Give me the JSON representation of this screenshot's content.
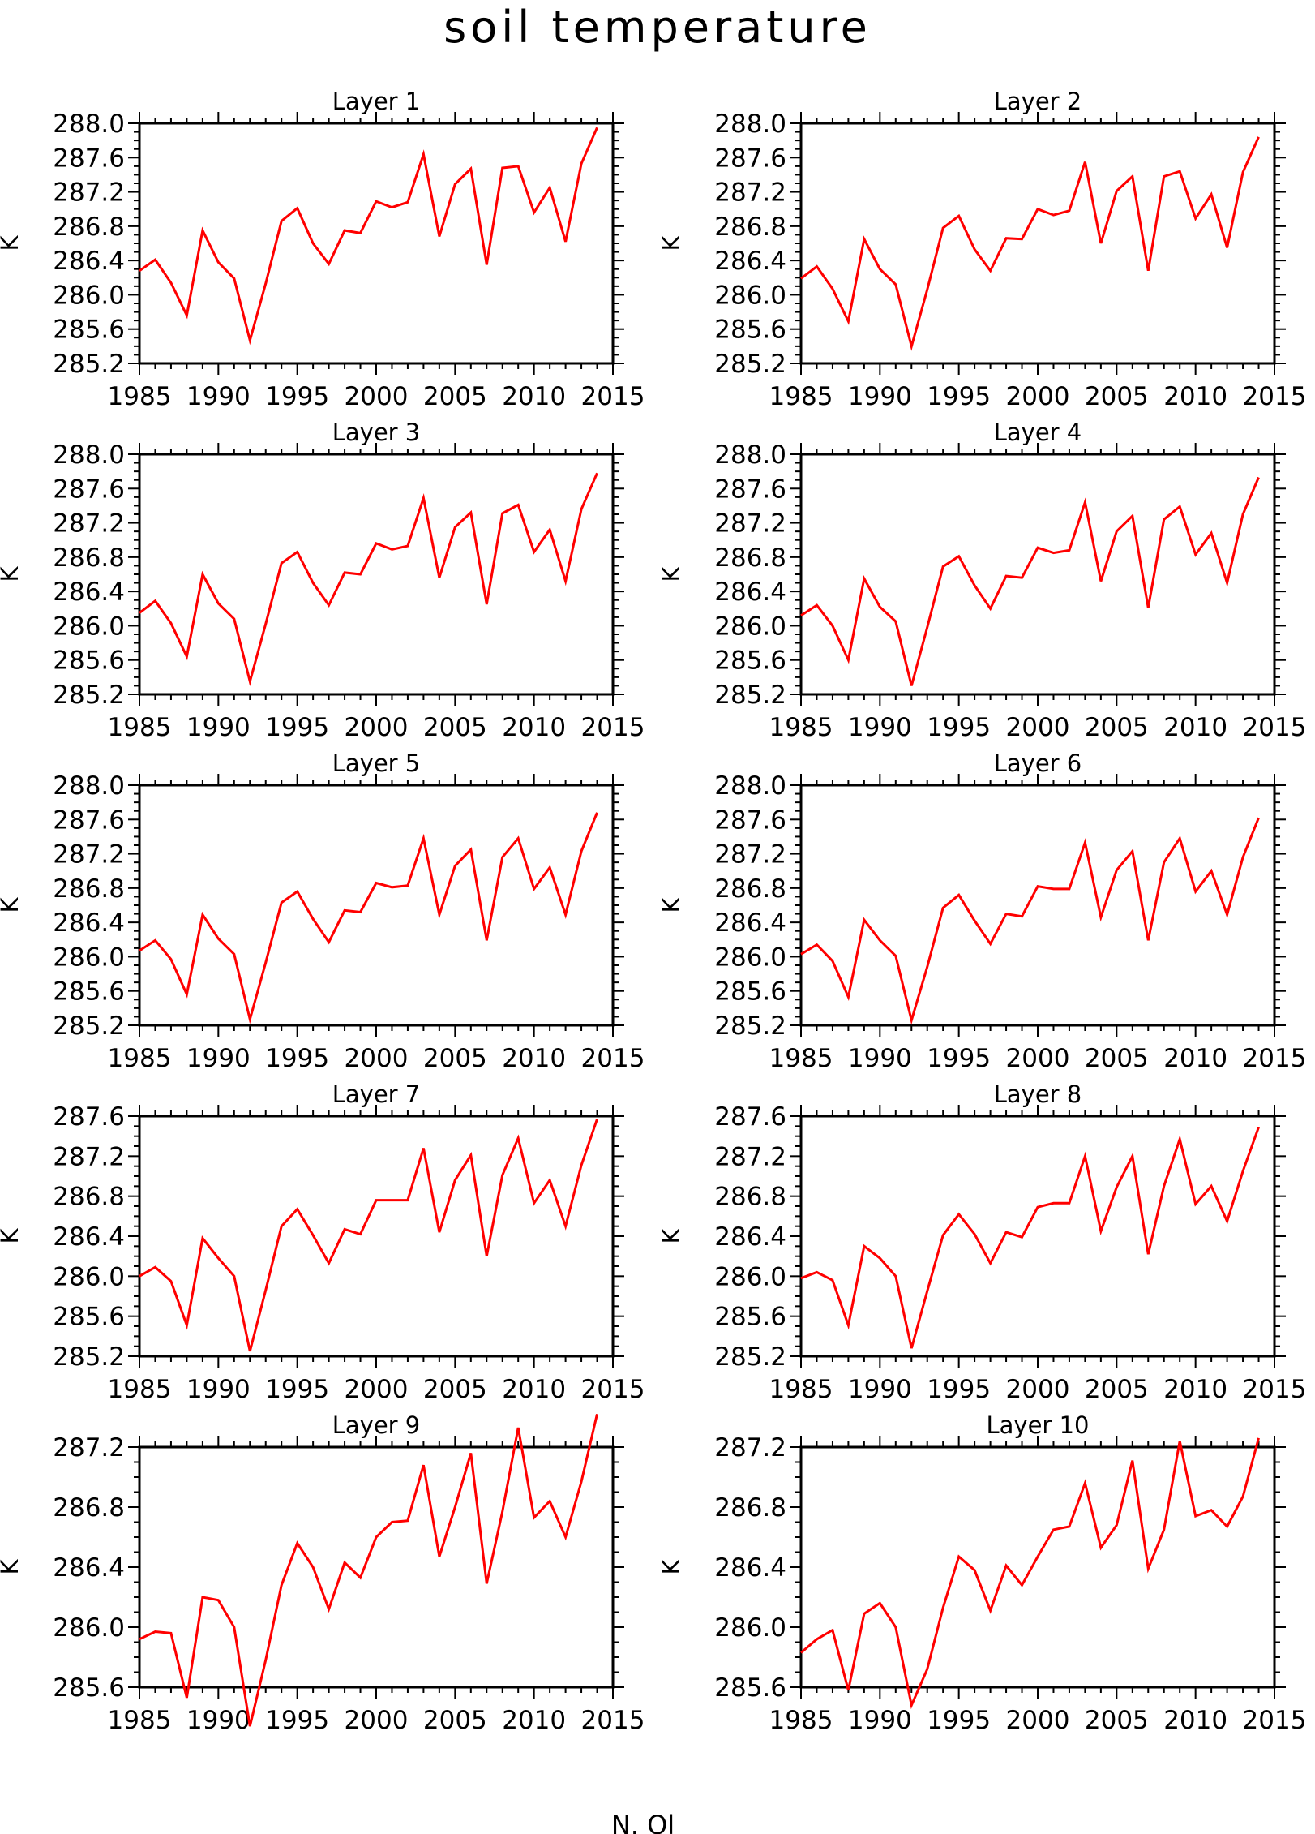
{
  "title": "soil temperature",
  "footer": "N. Ol",
  "chart_data": [
    {
      "type": "line",
      "title": "Layer 1",
      "xlabel": "",
      "ylabel": "K",
      "xlim": [
        1985,
        2015
      ],
      "ylim": [
        285.2,
        288.0
      ],
      "xticks": [
        1985,
        1990,
        1995,
        2000,
        2005,
        2010,
        2015
      ],
      "xtick_labels": [
        "1985",
        "1990",
        "1995",
        "2000",
        "2005",
        "2010",
        "2015"
      ],
      "yticks": [
        285.2,
        285.6,
        286.0,
        286.4,
        286.8,
        287.2,
        287.6,
        288.0
      ],
      "ytick_labels": [
        "285.2",
        "285.6",
        "286.0",
        "286.4",
        "286.8",
        "287.2",
        "287.6",
        "288.0"
      ],
      "grid": false,
      "color": "#ff0000",
      "x": [
        1985,
        1986,
        1987,
        1988,
        1989,
        1990,
        1991,
        1992,
        1993,
        1994,
        1995,
        1996,
        1997,
        1998,
        1999,
        2000,
        2001,
        2002,
        2003,
        2004,
        2005,
        2006,
        2007,
        2008,
        2009,
        2010,
        2011,
        2012,
        2013,
        2014
      ],
      "y": [
        286.28,
        286.41,
        286.14,
        285.76,
        286.75,
        286.38,
        286.19,
        285.47,
        286.13,
        286.86,
        287.01,
        286.6,
        286.36,
        286.75,
        286.72,
        287.09,
        287.02,
        287.08,
        287.64,
        286.68,
        287.29,
        287.47,
        286.35,
        287.48,
        287.5,
        286.96,
        287.25,
        286.62,
        287.53,
        287.95
      ]
    },
    {
      "type": "line",
      "title": "Layer 2",
      "xlabel": "",
      "ylabel": "K",
      "xlim": [
        1985,
        2015
      ],
      "ylim": [
        285.2,
        288.0
      ],
      "xticks": [
        1985,
        1990,
        1995,
        2000,
        2005,
        2010,
        2015
      ],
      "xtick_labels": [
        "1985",
        "1990",
        "1995",
        "2000",
        "2005",
        "2010",
        "2015"
      ],
      "yticks": [
        285.2,
        285.6,
        286.0,
        286.4,
        286.8,
        287.2,
        287.6,
        288.0
      ],
      "ytick_labels": [
        "285.2",
        "285.6",
        "286.0",
        "286.4",
        "286.8",
        "287.2",
        "287.6",
        "288.0"
      ],
      "grid": false,
      "color": "#ff0000",
      "x": [
        1985,
        1986,
        1987,
        1988,
        1989,
        1990,
        1991,
        1992,
        1993,
        1994,
        1995,
        1996,
        1997,
        1998,
        1999,
        2000,
        2001,
        2002,
        2003,
        2004,
        2005,
        2006,
        2007,
        2008,
        2009,
        2010,
        2011,
        2012,
        2013,
        2014
      ],
      "y": [
        286.19,
        286.33,
        286.07,
        285.69,
        286.65,
        286.3,
        286.12,
        285.4,
        286.06,
        286.78,
        286.92,
        286.53,
        286.28,
        286.66,
        286.65,
        287.0,
        286.93,
        286.98,
        287.55,
        286.6,
        287.21,
        287.38,
        286.28,
        287.38,
        287.44,
        286.89,
        287.17,
        286.55,
        287.43,
        287.84
      ]
    },
    {
      "type": "line",
      "title": "Layer 3",
      "xlabel": "",
      "ylabel": "K",
      "xlim": [
        1985,
        2015
      ],
      "ylim": [
        285.2,
        288.0
      ],
      "xticks": [
        1985,
        1990,
        1995,
        2000,
        2005,
        2010,
        2015
      ],
      "xtick_labels": [
        "1985",
        "1990",
        "1995",
        "2000",
        "2005",
        "2010",
        "2015"
      ],
      "yticks": [
        285.2,
        285.6,
        286.0,
        286.4,
        286.8,
        287.2,
        287.6,
        288.0
      ],
      "ytick_labels": [
        "285.2",
        "285.6",
        "286.0",
        "286.4",
        "286.8",
        "287.2",
        "287.6",
        "288.0"
      ],
      "grid": false,
      "color": "#ff0000",
      "x": [
        1985,
        1986,
        1987,
        1988,
        1989,
        1990,
        1991,
        1992,
        1993,
        1994,
        1995,
        1996,
        1997,
        1998,
        1999,
        2000,
        2001,
        2002,
        2003,
        2004,
        2005,
        2006,
        2007,
        2008,
        2009,
        2010,
        2011,
        2012,
        2013,
        2014
      ],
      "y": [
        286.15,
        286.29,
        286.03,
        285.64,
        286.6,
        286.26,
        286.08,
        285.35,
        286.02,
        286.73,
        286.86,
        286.5,
        286.24,
        286.62,
        286.6,
        286.96,
        286.89,
        286.93,
        287.49,
        286.56,
        287.15,
        287.32,
        286.25,
        287.31,
        287.41,
        286.86,
        287.12,
        286.52,
        287.36,
        287.78
      ]
    },
    {
      "type": "line",
      "title": "Layer 4",
      "xlabel": "",
      "ylabel": "K",
      "xlim": [
        1985,
        2015
      ],
      "ylim": [
        285.2,
        288.0
      ],
      "xticks": [
        1985,
        1990,
        1995,
        2000,
        2005,
        2010,
        2015
      ],
      "xtick_labels": [
        "1985",
        "1990",
        "1995",
        "2000",
        "2005",
        "2010",
        "2015"
      ],
      "yticks": [
        285.2,
        285.6,
        286.0,
        286.4,
        286.8,
        287.2,
        287.6,
        288.0
      ],
      "ytick_labels": [
        "285.2",
        "285.6",
        "286.0",
        "286.4",
        "286.8",
        "287.2",
        "287.6",
        "288.0"
      ],
      "grid": false,
      "color": "#ff0000",
      "x": [
        1985,
        1986,
        1987,
        1988,
        1989,
        1990,
        1991,
        1992,
        1993,
        1994,
        1995,
        1996,
        1997,
        1998,
        1999,
        2000,
        2001,
        2002,
        2003,
        2004,
        2005,
        2006,
        2007,
        2008,
        2009,
        2010,
        2011,
        2012,
        2013,
        2014
      ],
      "y": [
        286.12,
        286.24,
        286.0,
        285.6,
        286.55,
        286.22,
        286.05,
        285.3,
        285.98,
        286.69,
        286.81,
        286.47,
        286.2,
        286.58,
        286.56,
        286.91,
        286.85,
        286.88,
        287.44,
        286.52,
        287.1,
        287.28,
        286.21,
        287.24,
        287.39,
        286.83,
        287.08,
        286.5,
        287.3,
        287.73
      ]
    },
    {
      "type": "line",
      "title": "Layer 5",
      "xlabel": "",
      "ylabel": "K",
      "xlim": [
        1985,
        2015
      ],
      "ylim": [
        285.2,
        288.0
      ],
      "xticks": [
        1985,
        1990,
        1995,
        2000,
        2005,
        2010,
        2015
      ],
      "xtick_labels": [
        "1985",
        "1990",
        "1995",
        "2000",
        "2005",
        "2010",
        "2015"
      ],
      "yticks": [
        285.2,
        285.6,
        286.0,
        286.4,
        286.8,
        287.2,
        287.6,
        288.0
      ],
      "ytick_labels": [
        "285.2",
        "285.6",
        "286.0",
        "286.4",
        "286.8",
        "287.2",
        "287.6",
        "288.0"
      ],
      "grid": false,
      "color": "#ff0000",
      "x": [
        1985,
        1986,
        1987,
        1988,
        1989,
        1990,
        1991,
        1992,
        1993,
        1994,
        1995,
        1996,
        1997,
        1998,
        1999,
        2000,
        2001,
        2002,
        2003,
        2004,
        2005,
        2006,
        2007,
        2008,
        2009,
        2010,
        2011,
        2012,
        2013,
        2014
      ],
      "y": [
        286.07,
        286.19,
        285.97,
        285.56,
        286.49,
        286.21,
        286.03,
        285.27,
        285.93,
        286.63,
        286.76,
        286.44,
        286.17,
        286.54,
        286.52,
        286.86,
        286.81,
        286.83,
        287.38,
        286.49,
        287.06,
        287.25,
        286.19,
        287.16,
        287.38,
        286.79,
        287.04,
        286.49,
        287.23,
        287.68
      ]
    },
    {
      "type": "line",
      "title": "Layer 6",
      "xlabel": "",
      "ylabel": "K",
      "xlim": [
        1985,
        2015
      ],
      "ylim": [
        285.2,
        288.0
      ],
      "xticks": [
        1985,
        1990,
        1995,
        2000,
        2005,
        2010,
        2015
      ],
      "xtick_labels": [
        "1985",
        "1990",
        "1995",
        "2000",
        "2005",
        "2010",
        "2015"
      ],
      "yticks": [
        285.2,
        285.6,
        286.0,
        286.4,
        286.8,
        287.2,
        287.6,
        288.0
      ],
      "ytick_labels": [
        "285.2",
        "285.6",
        "286.0",
        "286.4",
        "286.8",
        "287.2",
        "287.6",
        "288.0"
      ],
      "grid": false,
      "color": "#ff0000",
      "x": [
        1985,
        1986,
        1987,
        1988,
        1989,
        1990,
        1991,
        1992,
        1993,
        1994,
        1995,
        1996,
        1997,
        1998,
        1999,
        2000,
        2001,
        2002,
        2003,
        2004,
        2005,
        2006,
        2007,
        2008,
        2009,
        2010,
        2011,
        2012,
        2013,
        2014
      ],
      "y": [
        286.03,
        286.14,
        285.95,
        285.53,
        286.43,
        286.19,
        286.01,
        285.26,
        285.88,
        286.57,
        286.72,
        286.42,
        286.15,
        286.5,
        286.47,
        286.82,
        286.79,
        286.79,
        287.33,
        286.46,
        287.01,
        287.23,
        286.19,
        287.1,
        287.38,
        286.76,
        287.0,
        286.49,
        287.16,
        287.62
      ]
    },
    {
      "type": "line",
      "title": "Layer 7",
      "xlabel": "",
      "ylabel": "K",
      "xlim": [
        1985,
        2015
      ],
      "ylim": [
        285.2,
        287.6
      ],
      "xticks": [
        1985,
        1990,
        1995,
        2000,
        2005,
        2010,
        2015
      ],
      "xtick_labels": [
        "1985",
        "1990",
        "1995",
        "2000",
        "2005",
        "2010",
        "2015"
      ],
      "yticks": [
        285.2,
        285.6,
        286.0,
        286.4,
        286.8,
        287.2,
        287.6
      ],
      "ytick_labels": [
        "285.2",
        "285.6",
        "286.0",
        "286.4",
        "286.8",
        "287.2",
        "287.6"
      ],
      "grid": false,
      "color": "#ff0000",
      "x": [
        1985,
        1986,
        1987,
        1988,
        1989,
        1990,
        1991,
        1992,
        1993,
        1994,
        1995,
        1996,
        1997,
        1998,
        1999,
        2000,
        2001,
        2002,
        2003,
        2004,
        2005,
        2006,
        2007,
        2008,
        2009,
        2010,
        2011,
        2012,
        2013,
        2014
      ],
      "y": [
        286.0,
        286.09,
        285.95,
        285.51,
        286.38,
        286.18,
        286.0,
        285.25,
        285.86,
        286.5,
        286.67,
        286.41,
        286.13,
        286.47,
        286.42,
        286.76,
        286.76,
        286.76,
        287.28,
        286.44,
        286.96,
        287.21,
        286.2,
        287.01,
        287.38,
        286.73,
        286.96,
        286.5,
        287.11,
        287.57
      ]
    },
    {
      "type": "line",
      "title": "Layer 8",
      "xlabel": "",
      "ylabel": "K",
      "xlim": [
        1985,
        2015
      ],
      "ylim": [
        285.2,
        287.6
      ],
      "xticks": [
        1985,
        1990,
        1995,
        2000,
        2005,
        2010,
        2015
      ],
      "xtick_labels": [
        "1985",
        "1990",
        "1995",
        "2000",
        "2005",
        "2010",
        "2015"
      ],
      "yticks": [
        285.2,
        285.6,
        286.0,
        286.4,
        286.8,
        287.2,
        287.6
      ],
      "ytick_labels": [
        "285.2",
        "285.6",
        "286.0",
        "286.4",
        "286.8",
        "287.2",
        "287.6"
      ],
      "grid": false,
      "color": "#ff0000",
      "x": [
        1985,
        1986,
        1987,
        1988,
        1989,
        1990,
        1991,
        1992,
        1993,
        1994,
        1995,
        1996,
        1997,
        1998,
        1999,
        2000,
        2001,
        2002,
        2003,
        2004,
        2005,
        2006,
        2007,
        2008,
        2009,
        2010,
        2011,
        2012,
        2013,
        2014
      ],
      "y": [
        285.98,
        286.04,
        285.96,
        285.51,
        286.3,
        286.18,
        286.0,
        285.28,
        285.85,
        286.41,
        286.62,
        286.42,
        286.13,
        286.44,
        286.39,
        286.69,
        286.73,
        286.73,
        287.2,
        286.45,
        286.89,
        287.2,
        286.22,
        286.9,
        287.37,
        286.72,
        286.9,
        286.55,
        287.05,
        287.49
      ]
    },
    {
      "type": "line",
      "title": "Layer 9",
      "xlabel": "",
      "ylabel": "K",
      "xlim": [
        1985,
        2015
      ],
      "ylim": [
        285.6,
        287.2
      ],
      "xticks": [
        1985,
        1990,
        1995,
        2000,
        2005,
        2010,
        2015
      ],
      "xtick_labels": [
        "1985",
        "1990",
        "1995",
        "2000",
        "2005",
        "2010",
        "2015"
      ],
      "yticks": [
        285.6,
        286.0,
        286.4,
        286.8,
        287.2
      ],
      "ytick_labels": [
        "285.6",
        "286.0",
        "286.4",
        "286.8",
        "287.2"
      ],
      "grid": false,
      "color": "#ff0000",
      "x": [
        1985,
        1986,
        1987,
        1988,
        1989,
        1990,
        1991,
        1992,
        1993,
        1994,
        1995,
        1996,
        1997,
        1998,
        1999,
        2000,
        2001,
        2002,
        2003,
        2004,
        2005,
        2006,
        2007,
        2008,
        2009,
        2010,
        2011,
        2012,
        2013,
        2014
      ],
      "y": [
        285.92,
        285.97,
        285.96,
        285.53,
        286.2,
        286.18,
        286.0,
        285.34,
        285.78,
        286.28,
        286.56,
        286.4,
        286.12,
        286.43,
        286.33,
        286.6,
        286.7,
        286.71,
        287.08,
        286.47,
        286.8,
        287.16,
        286.29,
        286.77,
        287.33,
        286.73,
        286.84,
        286.6,
        286.97,
        287.42
      ]
    },
    {
      "type": "line",
      "title": "Layer 10",
      "xlabel": "",
      "ylabel": "K",
      "xlim": [
        1985,
        2015
      ],
      "ylim": [
        285.6,
        287.2
      ],
      "xticks": [
        1985,
        1990,
        1995,
        2000,
        2005,
        2010,
        2015
      ],
      "xtick_labels": [
        "1985",
        "1990",
        "1995",
        "2000",
        "2005",
        "2010",
        "2015"
      ],
      "yticks": [
        285.6,
        286.0,
        286.4,
        286.8,
        287.2
      ],
      "ytick_labels": [
        "285.6",
        "286.0",
        "286.4",
        "286.8",
        "287.2"
      ],
      "grid": false,
      "color": "#ff0000",
      "x": [
        1985,
        1986,
        1987,
        1988,
        1989,
        1990,
        1991,
        1992,
        1993,
        1994,
        1995,
        1996,
        1997,
        1998,
        1999,
        2000,
        2001,
        2002,
        2003,
        2004,
        2005,
        2006,
        2007,
        2008,
        2009,
        2010,
        2011,
        2012,
        2013,
        2014
      ],
      "y": [
        285.83,
        285.92,
        285.98,
        285.58,
        286.09,
        286.16,
        286.0,
        285.48,
        285.72,
        286.13,
        286.47,
        286.38,
        286.11,
        286.41,
        286.28,
        286.47,
        286.65,
        286.67,
        286.96,
        286.53,
        286.68,
        287.11,
        286.39,
        286.65,
        287.24,
        286.74,
        286.78,
        286.67,
        286.87,
        287.26
      ]
    }
  ]
}
